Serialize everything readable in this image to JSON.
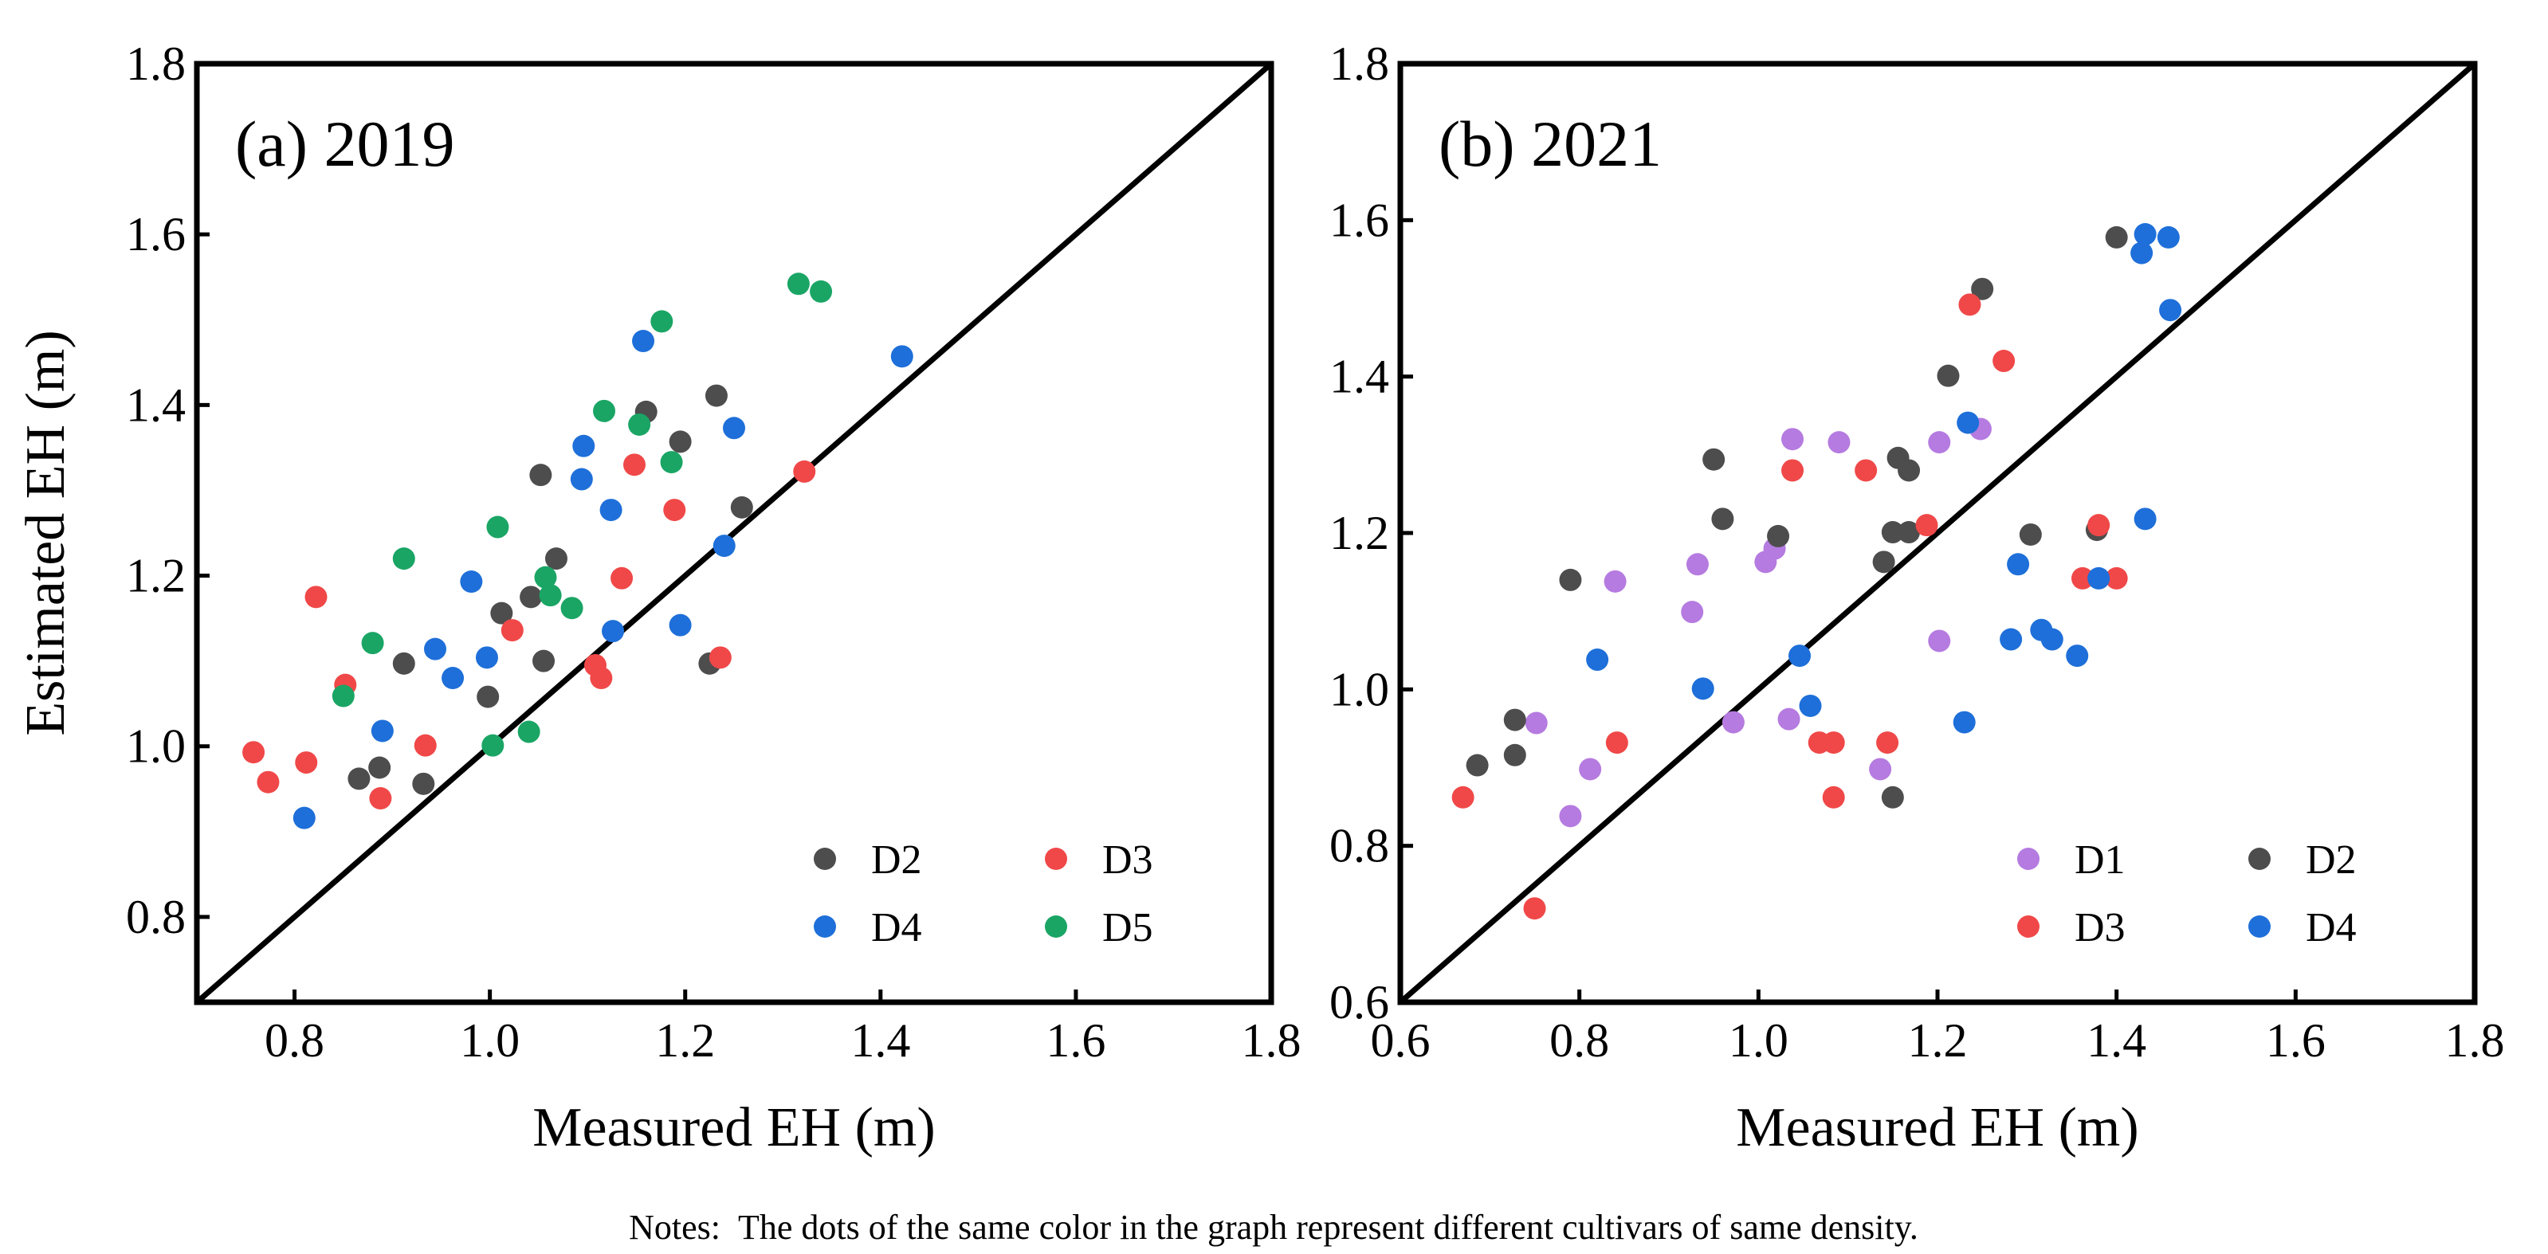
{
  "figure": {
    "notes": "Notes:  The dots of the same color in the graph represent different cultivars of same density."
  },
  "colors": {
    "D1": "#b57be0",
    "D2": "#4d4d4d",
    "D3": "#f04848",
    "D4": "#1e6fd9",
    "D5": "#1aa565",
    "frame": "#000000",
    "line": "#000000"
  },
  "chart_data": [
    {
      "type": "scatter",
      "panel_label": "(a) 2019",
      "xlabel": "Measured EH (m)",
      "ylabel": "Estimated EH (m)",
      "xlim": [
        0.7,
        1.8
      ],
      "ylim": [
        0.7,
        1.8
      ],
      "xticks": [
        "0.8",
        "1.0",
        "1.2",
        "1.4",
        "1.6",
        "1.8"
      ],
      "yticks": [
        "0.8",
        "1.0",
        "1.2",
        "1.4",
        "1.6",
        "1.8"
      ],
      "xtick_values": [
        0.8,
        1.0,
        1.2,
        1.4,
        1.6,
        1.8
      ],
      "ytick_values": [
        0.8,
        1.0,
        1.2,
        1.4,
        1.6,
        1.8
      ],
      "reference_line": "1:1",
      "legend_position": "bottom-right",
      "legend_columns": 2,
      "series": [
        {
          "name": "D2",
          "color": "#4d4d4d",
          "points": [
            [
              0.866,
              0.962
            ],
            [
              0.887,
              0.975
            ],
            [
              0.912,
              1.097
            ],
            [
              0.932,
              0.956
            ],
            [
              0.998,
              1.058
            ],
            [
              1.012,
              1.156
            ],
            [
              1.042,
              1.175
            ],
            [
              1.052,
              1.318
            ],
            [
              1.055,
              1.1
            ],
            [
              1.068,
              1.22
            ],
            [
              1.16,
              1.392
            ],
            [
              1.195,
              1.357
            ],
            [
              1.225,
              1.097
            ],
            [
              1.232,
              1.411
            ],
            [
              1.258,
              1.28
            ]
          ]
        },
        {
          "name": "D3",
          "color": "#f04848",
          "points": [
            [
              0.758,
              0.993
            ],
            [
              0.773,
              0.958
            ],
            [
              0.812,
              0.981
            ],
            [
              0.822,
              1.175
            ],
            [
              0.852,
              1.072
            ],
            [
              0.888,
              0.939
            ],
            [
              0.934,
              1.001
            ],
            [
              1.023,
              1.136
            ],
            [
              1.108,
              1.095
            ],
            [
              1.114,
              1.08
            ],
            [
              1.135,
              1.197
            ],
            [
              1.148,
              1.33
            ],
            [
              1.189,
              1.277
            ],
            [
              1.236,
              1.104
            ],
            [
              1.322,
              1.322
            ]
          ]
        },
        {
          "name": "D4",
          "color": "#1e6fd9",
          "points": [
            [
              0.81,
              0.916
            ],
            [
              0.89,
              1.018
            ],
            [
              0.944,
              1.114
            ],
            [
              0.962,
              1.08
            ],
            [
              0.981,
              1.193
            ],
            [
              0.997,
              1.104
            ],
            [
              1.094,
              1.313
            ],
            [
              1.096,
              1.352
            ],
            [
              1.124,
              1.277
            ],
            [
              1.126,
              1.135
            ],
            [
              1.157,
              1.475
            ],
            [
              1.195,
              1.142
            ],
            [
              1.24,
              1.235
            ],
            [
              1.25,
              1.373
            ],
            [
              1.422,
              1.457
            ]
          ]
        },
        {
          "name": "D5",
          "color": "#1aa565",
          "points": [
            [
              0.85,
              1.059
            ],
            [
              0.88,
              1.121
            ],
            [
              0.912,
              1.22
            ],
            [
              1.003,
              1.001
            ],
            [
              1.008,
              1.257
            ],
            [
              1.04,
              1.017
            ],
            [
              1.057,
              1.198
            ],
            [
              1.062,
              1.177
            ],
            [
              1.084,
              1.162
            ],
            [
              1.117,
              1.393
            ],
            [
              1.153,
              1.377
            ],
            [
              1.176,
              1.498
            ],
            [
              1.186,
              1.333
            ],
            [
              1.316,
              1.542
            ],
            [
              1.339,
              1.533
            ]
          ]
        }
      ]
    },
    {
      "type": "scatter",
      "panel_label": "(b) 2021",
      "xlabel": "Measured EH (m)",
      "ylabel": "",
      "xlim": [
        0.6,
        1.8
      ],
      "ylim": [
        0.6,
        1.8
      ],
      "xticks": [
        "0.6",
        "0.8",
        "1.0",
        "1.2",
        "1.4",
        "1.6",
        "1.8"
      ],
      "yticks": [
        "0.6",
        "0.8",
        "1.0",
        "1.2",
        "1.4",
        "1.6",
        "1.8"
      ],
      "xtick_values": [
        0.6,
        0.8,
        1.0,
        1.2,
        1.4,
        1.6,
        1.8
      ],
      "ytick_values": [
        0.6,
        0.8,
        1.0,
        1.2,
        1.4,
        1.6,
        1.8
      ],
      "reference_line": "1:1",
      "legend_position": "bottom-right",
      "legend_columns": 2,
      "series": [
        {
          "name": "D1",
          "color": "#b57be0",
          "points": [
            [
              0.752,
              0.957
            ],
            [
              0.79,
              0.838
            ],
            [
              0.812,
              0.898
            ],
            [
              0.84,
              1.138
            ],
            [
              0.926,
              1.099
            ],
            [
              0.932,
              1.16
            ],
            [
              0.972,
              0.958
            ],
            [
              1.008,
              1.163
            ],
            [
              1.018,
              1.18
            ],
            [
              1.034,
              0.962
            ],
            [
              1.038,
              1.32
            ],
            [
              1.09,
              1.316
            ],
            [
              1.136,
              0.898
            ],
            [
              1.202,
              1.062
            ],
            [
              1.202,
              1.316
            ],
            [
              1.248,
              1.333
            ]
          ]
        },
        {
          "name": "D2",
          "color": "#4d4d4d",
          "points": [
            [
              0.686,
              0.903
            ],
            [
              0.728,
              0.916
            ],
            [
              0.728,
              0.961
            ],
            [
              0.79,
              1.14
            ],
            [
              0.95,
              1.294
            ],
            [
              0.96,
              1.218
            ],
            [
              1.022,
              1.196
            ],
            [
              1.14,
              1.163
            ],
            [
              1.15,
              1.201
            ],
            [
              1.15,
              0.862
            ],
            [
              1.156,
              1.296
            ],
            [
              1.168,
              1.201
            ],
            [
              1.168,
              1.28
            ],
            [
              1.212,
              1.401
            ],
            [
              1.25,
              1.512
            ],
            [
              1.304,
              1.198
            ],
            [
              1.378,
              1.204
            ],
            [
              1.4,
              1.578
            ]
          ]
        },
        {
          "name": "D3",
          "color": "#f04848",
          "points": [
            [
              0.67,
              0.862
            ],
            [
              0.75,
              0.72
            ],
            [
              0.842,
              0.932
            ],
            [
              1.038,
              1.28
            ],
            [
              1.068,
              0.932
            ],
            [
              1.084,
              0.862
            ],
            [
              1.084,
              0.932
            ],
            [
              1.12,
              1.28
            ],
            [
              1.144,
              0.932
            ],
            [
              1.188,
              1.21
            ],
            [
              1.236,
              1.492
            ],
            [
              1.274,
              1.42
            ],
            [
              1.362,
              1.142
            ],
            [
              1.38,
              1.21
            ],
            [
              1.4,
              1.142
            ]
          ]
        },
        {
          "name": "D4",
          "color": "#1e6fd9",
          "points": [
            [
              0.82,
              1.038
            ],
            [
              0.938,
              1.001
            ],
            [
              1.046,
              1.043
            ],
            [
              1.058,
              0.979
            ],
            [
              1.23,
              0.958
            ],
            [
              1.234,
              1.341
            ],
            [
              1.282,
              1.064
            ],
            [
              1.29,
              1.16
            ],
            [
              1.316,
              1.076
            ],
            [
              1.328,
              1.064
            ],
            [
              1.356,
              1.043
            ],
            [
              1.38,
              1.142
            ],
            [
              1.428,
              1.558
            ],
            [
              1.432,
              1.218
            ],
            [
              1.432,
              1.582
            ],
            [
              1.458,
              1.578
            ],
            [
              1.46,
              1.485
            ]
          ]
        }
      ]
    }
  ]
}
